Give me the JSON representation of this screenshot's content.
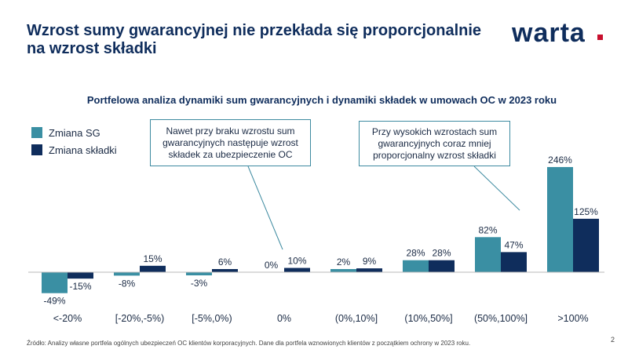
{
  "header": {
    "title": "Wzrost sumy gwarancyjnej nie przekłada się proporcjonalnie na wzrost składki",
    "logo_text": "warta"
  },
  "footer": {
    "source": "Źródło: Analizy własne portfela ogólnych ubezpieczeń OC klientów korporacyjnych. Dane dla portfela wznowionych klientów z początkiem ochrony w 2023 roku.",
    "page_number": "2"
  },
  "callouts": [
    {
      "text": "Nawet przy braku wzrostu sum gwarancyjnych następuje wzrost składek za ubezpieczenie OC"
    },
    {
      "text": "Przy wysokich wzrostach sum gwarancyjnych coraz mniej proporcjonalny wzrost składki"
    }
  ],
  "colors": {
    "brand": "#0f2d5c",
    "logo_accent": "#c8102e",
    "series_sg": "#3a8fa3",
    "series_premium": "#0f2d5c"
  },
  "chart_data": {
    "type": "bar",
    "title": "Portfelowa analiza dynamiki sum gwarancyjnych i dynamiki składek w umowach OC w 2023 roku",
    "xlabel": "",
    "ylabel": "",
    "legend_position": "top-left",
    "grid": false,
    "categories": [
      "<-20%",
      "[-20%,-5%)",
      "[-5%,0%)",
      "0%",
      "(0%,10%]",
      "(10%,50%]",
      "(50%,100%]",
      ">100%"
    ],
    "series": [
      {
        "name": "Zmiana SG",
        "color": "#3a8fa3",
        "values": [
          -49,
          -8,
          -3,
          0,
          2,
          28,
          82,
          246
        ],
        "labels": [
          "-49%",
          "-8%",
          "-3%",
          "0%",
          "2%",
          "28%",
          "82%",
          "246%"
        ]
      },
      {
        "name": "Zmiana składki",
        "color": "#0f2d5c",
        "values": [
          -15,
          15,
          6,
          10,
          9,
          28,
          47,
          125
        ],
        "labels": [
          "-15%",
          "15%",
          "6%",
          "10%",
          "9%",
          "28%",
          "47%",
          "125%"
        ]
      }
    ],
    "ylim": [
      -49,
      246
    ]
  }
}
